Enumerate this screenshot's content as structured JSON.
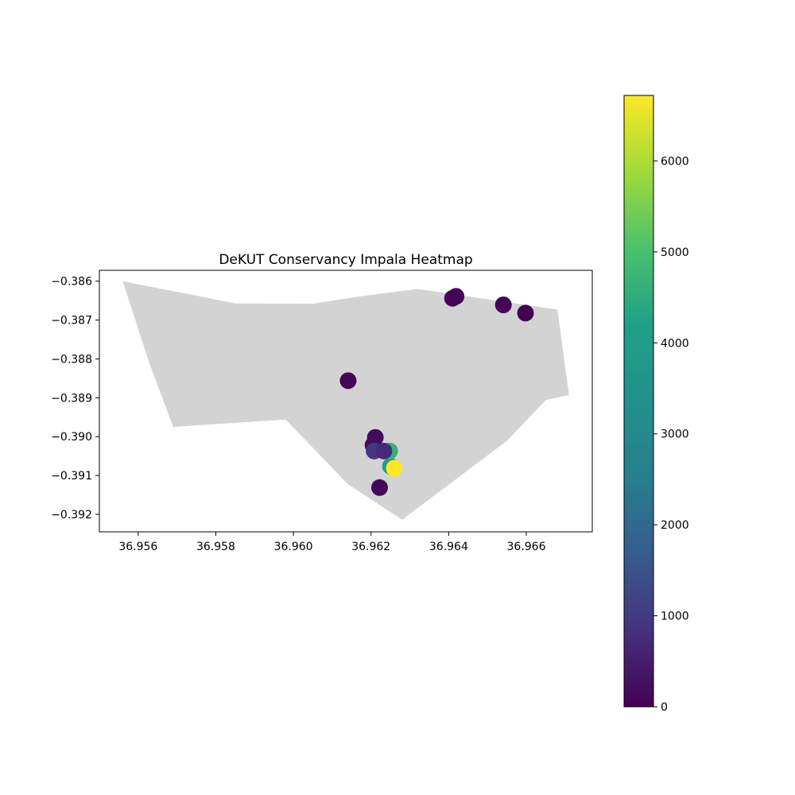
{
  "chart_data": {
    "type": "scatter",
    "title": "DeKUT Conservancy Impala Heatmap",
    "xlabel": "",
    "ylabel": "",
    "xlim": [
      36.955,
      36.9677
    ],
    "ylim": [
      -0.39245,
      -0.38572
    ],
    "x_ticks": [
      36.956,
      36.958,
      36.96,
      36.962,
      36.964,
      36.966
    ],
    "x_tick_labels": [
      "36.956",
      "36.958",
      "36.960",
      "36.962",
      "36.964",
      "36.966"
    ],
    "y_ticks": [
      -0.386,
      -0.387,
      -0.388,
      -0.389,
      -0.39,
      -0.391,
      -0.392
    ],
    "y_tick_labels": [
      "−0.386",
      "−0.387",
      "−0.388",
      "−0.389",
      "−0.390",
      "−0.391",
      "−0.392"
    ],
    "grid": false,
    "boundary": {
      "color": "#d3d3d3",
      "points": [
        [
          36.9556,
          -0.386
        ],
        [
          36.9585,
          -0.38657
        ],
        [
          36.9605,
          -0.38658
        ],
        [
          36.9618,
          -0.38638
        ],
        [
          36.9632,
          -0.3862
        ],
        [
          36.9668,
          -0.38673
        ],
        [
          36.9671,
          -0.38893
        ],
        [
          36.9665,
          -0.38906
        ],
        [
          36.9655,
          -0.39011
        ],
        [
          36.9628,
          -0.39214
        ],
        [
          36.9614,
          -0.39122
        ],
        [
          36.9598,
          -0.38956
        ],
        [
          36.9569,
          -0.38975
        ],
        [
          36.9563,
          -0.38815
        ]
      ]
    },
    "colormap": "viridis",
    "color_range": [
      0,
      6720
    ],
    "colorbar_ticks": [
      0,
      1000,
      2000,
      3000,
      4000,
      5000,
      6000
    ],
    "colorbar_tick_labels": [
      "0",
      "1000",
      "2000",
      "3000",
      "4000",
      "5000",
      "6000"
    ],
    "points": [
      {
        "x": 36.96141,
        "y": -0.38856,
        "value": 60
      },
      {
        "x": 36.9641,
        "y": -0.38644,
        "value": 40
      },
      {
        "x": 36.96419,
        "y": -0.38639,
        "value": 50
      },
      {
        "x": 36.96541,
        "y": -0.38661,
        "value": 30
      },
      {
        "x": 36.96598,
        "y": -0.38682,
        "value": 20
      },
      {
        "x": 36.96211,
        "y": -0.39002,
        "value": 150
      },
      {
        "x": 36.96205,
        "y": -0.39022,
        "value": 180
      },
      {
        "x": 36.96222,
        "y": -0.39131,
        "value": 100
      },
      {
        "x": 36.96208,
        "y": -0.39037,
        "value": 900
      },
      {
        "x": 36.9625,
        "y": -0.39076,
        "value": 3900
      },
      {
        "x": 36.96248,
        "y": -0.39037,
        "value": 4600
      },
      {
        "x": 36.96233,
        "y": -0.39037,
        "value": 700
      },
      {
        "x": 36.9626,
        "y": -0.39081,
        "value": 6720
      }
    ]
  }
}
